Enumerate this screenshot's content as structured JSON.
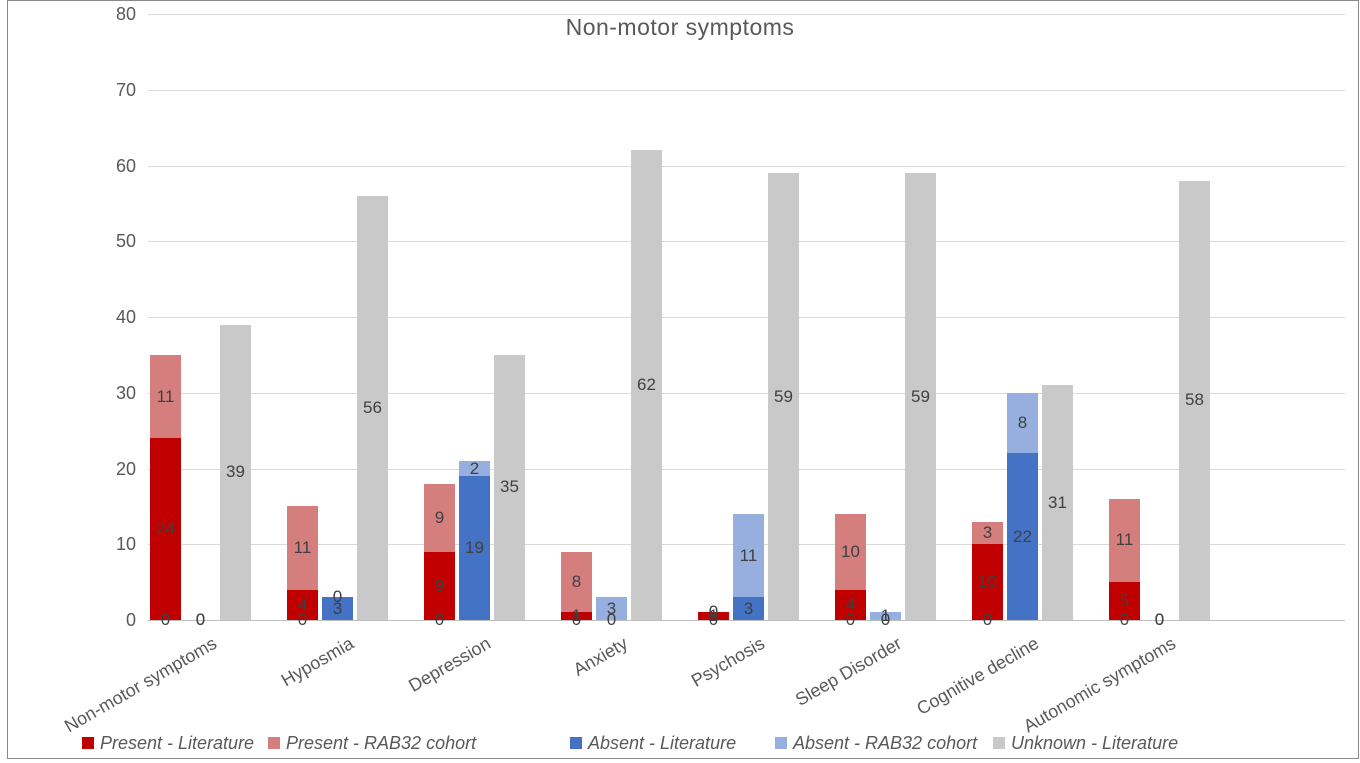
{
  "chart_data": {
    "type": "bar",
    "variant": "clustered-stacked-columns",
    "title": "Non-motor symptoms",
    "categories": [
      "Non-motor symptoms",
      "Hyposmia",
      "Depression",
      "Anxiety",
      "Psychosis",
      "Sleep Disorder",
      "Cognitive decline",
      "Autonomic symptoms"
    ],
    "clusters": [
      {
        "name": "Present",
        "baseline_zero_labels": [
          0,
          0,
          0,
          0,
          0,
          0,
          0,
          0
        ],
        "series": [
          {
            "name": "Present - Literature",
            "color": "#C00000",
            "values": [
              24,
              4,
              9,
              1,
              1,
              4,
              10,
              5
            ]
          },
          {
            "name": "Present - RAB32 cohort",
            "color": "#D47E7E",
            "values": [
              11,
              11,
              9,
              8,
              0,
              10,
              3,
              11
            ]
          }
        ]
      },
      {
        "name": "Absent",
        "baseline_zero_labels": null,
        "series": [
          {
            "name": "Absent - Literature",
            "color": "#4472C4",
            "values": [
              0,
              3,
              19,
              0,
              3,
              0,
              22,
              0
            ]
          },
          {
            "name": "Absent - RAB32 cohort",
            "color": "#97AFDE",
            "values": [
              0,
              0,
              2,
              3,
              11,
              1,
              8,
              0
            ]
          }
        ]
      },
      {
        "name": "Unknown",
        "baseline_zero_labels": null,
        "series": [
          {
            "name": "Unknown - Literature",
            "color": "#C9C9C9",
            "values": [
              39,
              56,
              35,
              62,
              59,
              59,
              31,
              58
            ]
          }
        ]
      }
    ],
    "ylim": [
      0,
      80
    ],
    "ytick_step": 10,
    "ytick_labels": [
      "0",
      "10",
      "20",
      "30",
      "40",
      "50",
      "60",
      "70",
      "80"
    ],
    "grid": true,
    "legend_position": "bottom",
    "legend": [
      {
        "label": "Present - Literature",
        "color": "#C00000"
      },
      {
        "label": "Present - RAB32 cohort",
        "color": "#D47E7E"
      },
      {
        "label": "Absent - Literature",
        "color": "#4472C4"
      },
      {
        "label": "Absent - RAB32 cohort",
        "color": "#97AFDE"
      },
      {
        "label": "Unknown - Literature",
        "color": "#C9C9C9"
      }
    ],
    "style_colors": {
      "gridline": "#d9d9d9",
      "axis_line": "#bfbfbf",
      "axis_text": "#595959",
      "data_label_text": "#404040",
      "title_text": "#595959"
    }
  }
}
